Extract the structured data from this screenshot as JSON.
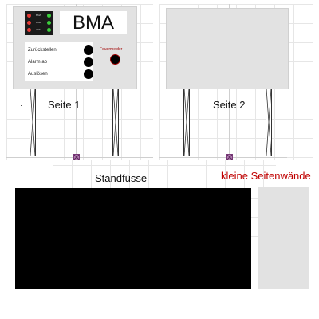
{
  "page1": {
    "label": "Seite 1",
    "title": "BMA",
    "led_rows": [
      "BMA",
      "BMZ",
      "USM"
    ],
    "controls": [
      "Zurückstellen",
      "Alarm ab",
      "Auslösen"
    ],
    "feuermelder_label": "Feuermelder"
  },
  "page2": {
    "label": "Seite 2"
  },
  "captions": {
    "standfuesse": "Standfüsse",
    "seitenwaende": "kleine Seitenwände"
  },
  "colors": {
    "panel": "#e2e2e2",
    "accent_red": "#c00000",
    "led_red": "#e53935",
    "led_green": "#3ccf3c"
  }
}
